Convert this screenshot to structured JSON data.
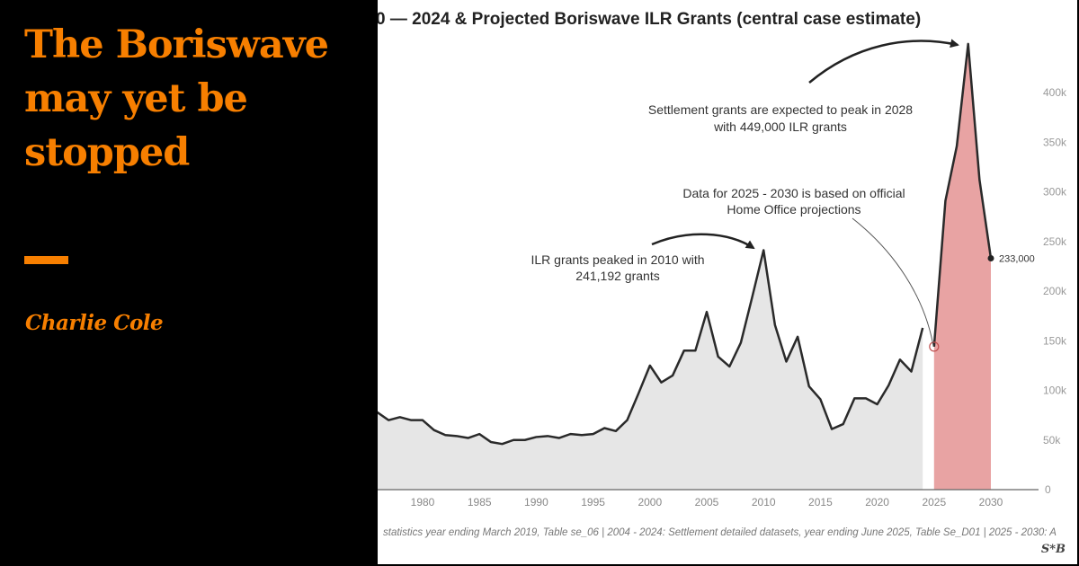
{
  "article": {
    "headline": "The Boriswave may yet be stopped",
    "author": "Charlie Cole",
    "accent_color": "#f77f00"
  },
  "chart_data": {
    "type": "area",
    "title": "0 — 2024 & Projected Boriswave ILR Grants (central case estimate)",
    "xlabel": "",
    "ylabel": "",
    "xlim": [
      1976,
      2030
    ],
    "ylim": [
      0,
      450000
    ],
    "x_ticks": [
      "1980",
      "1985",
      "1990",
      "1995",
      "2000",
      "2005",
      "2010",
      "2015",
      "2020",
      "2025",
      "2030"
    ],
    "y_ticks": [
      "0",
      "50k",
      "100k",
      "150k",
      "200k",
      "250k",
      "300k",
      "350k",
      "400k"
    ],
    "grid": false,
    "series": [
      {
        "color": "#e6e6e6",
        "x": [
          1976,
          1977,
          1978,
          1979,
          1980,
          1981,
          1982,
          1983,
          1984,
          1985,
          1986,
          1987,
          1988,
          1989,
          1990,
          1991,
          1992,
          1993,
          1994,
          1995,
          1996,
          1997,
          1998,
          1999,
          2000,
          2001,
          2002,
          2003,
          2004,
          2005,
          2006,
          2007,
          2008,
          2009,
          2010,
          2011,
          2012,
          2013,
          2014,
          2015,
          2016,
          2017,
          2018,
          2019,
          2020,
          2021,
          2022,
          2023,
          2024
        ],
        "values": [
          78000,
          70000,
          73000,
          70000,
          70000,
          60000,
          55000,
          54000,
          52000,
          56000,
          48000,
          46000,
          50000,
          50000,
          53000,
          54000,
          52000,
          56000,
          55000,
          56000,
          62000,
          59000,
          70000,
          97000,
          125000,
          108000,
          115000,
          140000,
          140000,
          179000,
          134000,
          124000,
          148000,
          194000,
          241192,
          166000,
          129000,
          154000,
          104000,
          91000,
          61000,
          66000,
          92000,
          92000,
          86000,
          105000,
          131000,
          119000,
          163000
        ]
      },
      {
        "color": "#e8a3a3",
        "x": [
          2025,
          2026,
          2027,
          2028,
          2029,
          2030
        ],
        "values": [
          144000,
          291000,
          346000,
          449000,
          312000,
          233000
        ]
      }
    ],
    "annotations": {
      "peak_2010": [
        "ILR grants peaked in 2010 with",
        "241,192 grants"
      ],
      "projection_note": [
        "Data for 2025 - 2030 is based on official",
        "Home Office projections"
      ],
      "peak_2028": [
        "Settlement grants are expected to peak in 2028",
        "with 449,000 ILR grants"
      ],
      "end_label": "233,000"
    },
    "source": "statistics year ending March 2019, Table se_06 | 2004 - 2024: Settlement detailed datasets, year ending June 2025, Table Se_D01 | 2025 - 2030: A",
    "credit": "S*B"
  }
}
